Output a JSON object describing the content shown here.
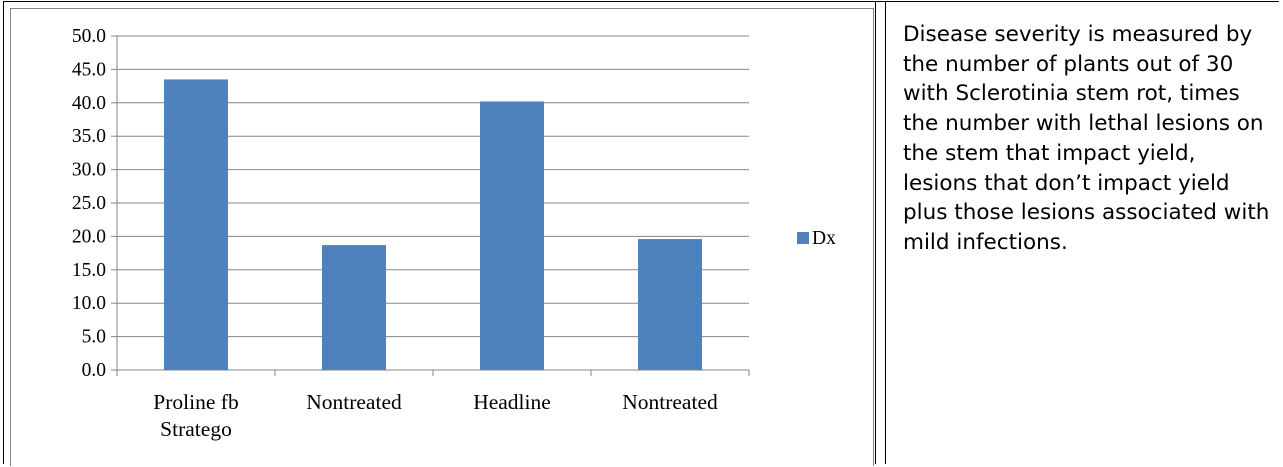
{
  "chart_data": {
    "type": "bar",
    "categories": [
      [
        "Proline fb",
        "Stratego"
      ],
      [
        "Nontreated"
      ],
      [
        "Headline"
      ],
      [
        "Nontreated"
      ]
    ],
    "series": [
      {
        "name": "Dx",
        "values": [
          43.5,
          18.7,
          40.2,
          19.6
        ],
        "color": "#4F81BD"
      }
    ],
    "y_ticks": [
      "0.0",
      "5.0",
      "10.0",
      "15.0",
      "20.0",
      "25.0",
      "30.0",
      "35.0",
      "40.0",
      "45.0",
      "50.0"
    ],
    "ylim": [
      0,
      50
    ],
    "grid": true,
    "legend": "right"
  },
  "description": "Disease severity is measured by the number of plants out of 30 with Sclerotinia stem rot, times the number with lethal lesions on the stem that impact yield, lesions that don’t impact yield plus those lesions associated with mild infections."
}
